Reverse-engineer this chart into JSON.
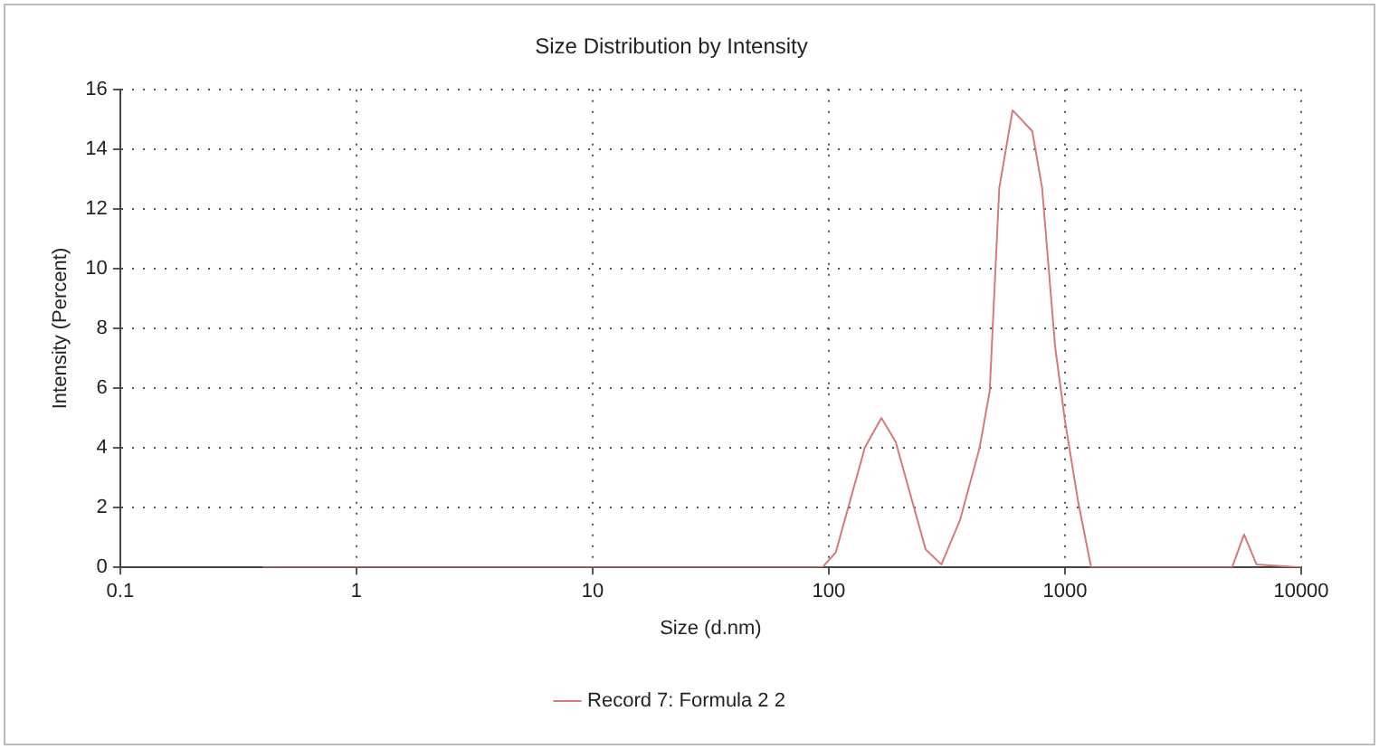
{
  "chart_data": {
    "type": "line",
    "title": "Size Distribution by Intensity",
    "xlabel": "Size (d.nm)",
    "ylabel": "Intensity (Percent)",
    "log": "x",
    "xlim": [
      0.1,
      10000
    ],
    "xticks": [
      0.1,
      1,
      10,
      100,
      1000,
      10000
    ],
    "ylim": [
      0,
      16
    ],
    "yticks": [
      0,
      2,
      4,
      6,
      8,
      10,
      12,
      14,
      16
    ],
    "grid": true,
    "legend": "bottom",
    "marker": "none",
    "line_style": "solid",
    "series": [
      {
        "name": "Record 7: Formula 2 2",
        "color": "#d47a7a",
        "x": [
          0.4,
          94,
          107,
          142,
          167,
          192,
          257,
          300,
          360,
          435,
          480,
          527,
          600,
          727,
          800,
          908,
          1000,
          1137,
          1290,
          5100,
          5730,
          6470,
          10000
        ],
        "values": [
          0,
          0,
          0.5,
          4.0,
          5.0,
          4.2,
          0.6,
          0.1,
          1.6,
          4.0,
          5.9,
          12.7,
          15.3,
          14.6,
          12.7,
          7.4,
          4.9,
          2.2,
          0,
          0,
          1.1,
          0.1,
          0
        ]
      }
    ]
  }
}
